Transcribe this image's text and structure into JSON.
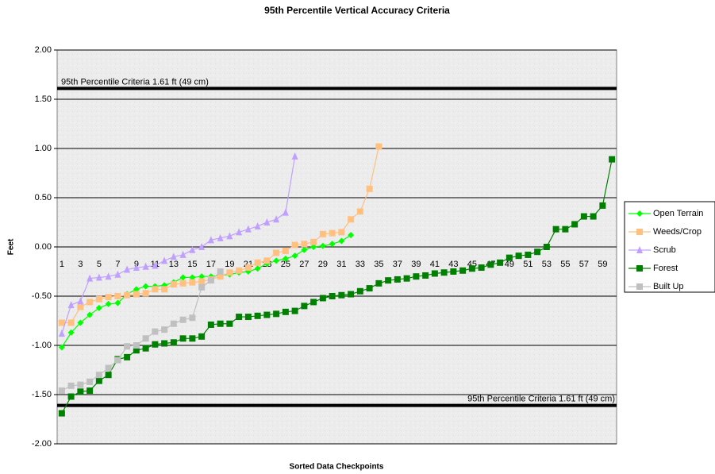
{
  "chart_data": {
    "type": "line",
    "title": "95th Percentile Vertical Accuracy Criteria",
    "y_label": "Feet",
    "x_label": "Sorted Data Checkpoints",
    "categories": [
      "1",
      null,
      "3",
      null,
      "5",
      null,
      "7",
      null,
      "9",
      null,
      "11",
      null,
      "13",
      null,
      "15",
      null,
      "17",
      null,
      "19",
      null,
      "21",
      null,
      "23",
      null,
      "25",
      null,
      "27",
      null,
      "29",
      null,
      "31",
      null,
      "33",
      null,
      "35",
      null,
      "37",
      null,
      "39",
      null,
      "41",
      null,
      "43",
      null,
      "45",
      null,
      "47",
      null,
      "49",
      null,
      "51",
      null,
      "53",
      null,
      "55",
      null,
      "57",
      null,
      "59",
      null
    ],
    "ylim": [
      -2,
      2
    ],
    "yticks": [
      {
        "value": -2,
        "label": "-2.00"
      },
      {
        "value": -1.5,
        "label": "-1.50"
      },
      {
        "value": -1,
        "label": "-1.00"
      },
      {
        "value": -0.5,
        "label": "-0.50"
      },
      {
        "value": 0,
        "label": "0.00"
      },
      {
        "value": 0.5,
        "label": "0.50"
      },
      {
        "value": 1,
        "label": "1.00"
      },
      {
        "value": 1.5,
        "label": "1.50"
      },
      {
        "value": 2,
        "label": "2.00"
      }
    ],
    "grid": true,
    "legend": "right",
    "reference_lines": [
      {
        "value": 1.61,
        "label": "95th Percentile Criteria 1.61 ft (49 cm)"
      },
      {
        "value": -1.61,
        "label": "95th Percentile Criteria 1.61 ft (49 cm)"
      }
    ],
    "series": [
      {
        "name": "Open Terrain",
        "color": "#00ff00",
        "marker": "diamond",
        "values": [
          -1.02,
          -0.87,
          -0.77,
          -0.69,
          -0.62,
          -0.58,
          -0.57,
          -0.48,
          -0.43,
          -0.4,
          -0.4,
          -0.39,
          -0.36,
          -0.31,
          -0.31,
          -0.3,
          -0.3,
          -0.29,
          -0.28,
          -0.26,
          -0.25,
          -0.22,
          -0.17,
          -0.14,
          -0.12,
          -0.09,
          -0.03,
          0.0,
          0.01,
          0.03,
          0.06,
          0.12,
          null,
          null,
          null,
          null,
          null,
          null,
          null,
          null,
          null,
          null,
          null,
          null,
          null,
          null,
          null,
          null,
          null,
          null,
          null,
          null,
          null,
          null,
          null,
          null,
          null,
          null,
          null,
          null
        ]
      },
      {
        "name": "Weeds/Crop",
        "color": "#ffc080",
        "marker": "square",
        "values": [
          -0.77,
          -0.77,
          -0.61,
          -0.56,
          -0.53,
          -0.51,
          -0.5,
          -0.49,
          -0.48,
          -0.47,
          -0.43,
          -0.43,
          -0.38,
          -0.37,
          -0.36,
          -0.35,
          -0.33,
          -0.3,
          -0.26,
          -0.24,
          -0.21,
          -0.16,
          -0.14,
          -0.06,
          -0.04,
          0.02,
          0.03,
          0.05,
          0.13,
          0.14,
          0.15,
          0.28,
          0.36,
          0.59,
          1.02,
          null,
          null,
          null,
          null,
          null,
          null,
          null,
          null,
          null,
          null,
          null,
          null,
          null,
          null,
          null,
          null,
          null,
          null,
          null,
          null,
          null,
          null,
          null,
          null,
          null
        ]
      },
      {
        "name": "Scrub",
        "color": "#c0a0ff",
        "marker": "triangle",
        "values": [
          -0.88,
          -0.59,
          -0.55,
          -0.32,
          -0.31,
          -0.3,
          -0.28,
          -0.23,
          -0.21,
          -0.2,
          -0.19,
          -0.14,
          -0.1,
          -0.08,
          -0.03,
          0.0,
          0.07,
          0.09,
          0.11,
          0.15,
          0.18,
          0.21,
          0.25,
          0.28,
          0.35,
          0.92,
          null,
          null,
          null,
          null,
          null,
          null,
          null,
          null,
          null,
          null,
          null,
          null,
          null,
          null,
          null,
          null,
          null,
          null,
          null,
          null,
          null,
          null,
          null,
          null,
          null,
          null,
          null,
          null,
          null,
          null,
          null,
          null,
          null,
          null
        ]
      },
      {
        "name": "Forest",
        "color": "#008000",
        "marker": "square",
        "values": [
          -1.69,
          -1.52,
          -1.47,
          -1.46,
          -1.36,
          -1.3,
          -1.14,
          -1.12,
          -1.05,
          -1.03,
          -0.99,
          -0.98,
          -0.97,
          -0.93,
          -0.93,
          -0.91,
          -0.79,
          -0.78,
          -0.78,
          -0.71,
          -0.71,
          -0.7,
          -0.69,
          -0.68,
          -0.66,
          -0.65,
          -0.6,
          -0.56,
          -0.52,
          -0.5,
          -0.49,
          -0.48,
          -0.45,
          -0.42,
          -0.37,
          -0.34,
          -0.33,
          -0.32,
          -0.3,
          -0.29,
          -0.27,
          -0.26,
          -0.25,
          -0.24,
          -0.22,
          -0.21,
          -0.18,
          -0.16,
          -0.11,
          -0.09,
          -0.08,
          -0.05,
          0.0,
          0.18,
          0.18,
          0.23,
          0.31,
          0.31,
          0.42,
          0.89
        ]
      },
      {
        "name": "Built Up",
        "color": "#c0c0c0",
        "marker": "square",
        "values": [
          -1.46,
          -1.41,
          -1.4,
          -1.37,
          -1.3,
          -1.23,
          -1.15,
          -1.01,
          -1.0,
          -0.93,
          -0.86,
          -0.84,
          -0.78,
          -0.74,
          -0.72,
          -0.41,
          -0.34,
          -0.25,
          null,
          null,
          null,
          null,
          null,
          null,
          null,
          null,
          null,
          null,
          null,
          null,
          null,
          null,
          null,
          null,
          null,
          null,
          null,
          null,
          null,
          null,
          null,
          null,
          null,
          null,
          null,
          null,
          null,
          null,
          null,
          null,
          null,
          null,
          null,
          null,
          null,
          null,
          null,
          null,
          null,
          null
        ]
      }
    ]
  }
}
